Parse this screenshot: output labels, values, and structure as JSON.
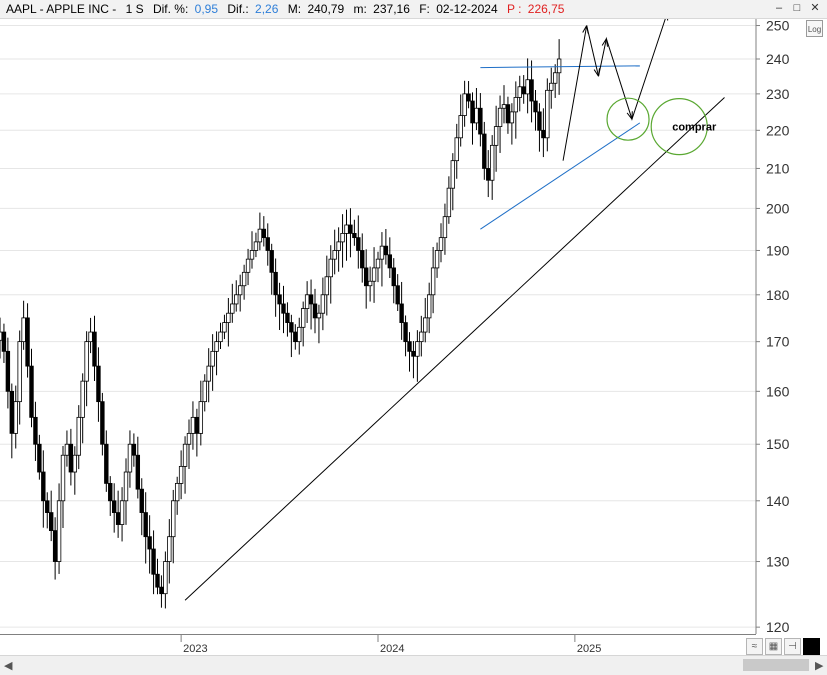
{
  "header": {
    "symbol": "AAPL - APPLE INC -",
    "interval": "1 S",
    "dif_pct_label": "Dif. %:",
    "dif_pct_value": "0,95",
    "dif_label": "Dif.:",
    "dif_value": "2,26",
    "max_label": "M:",
    "max_value": "240,79",
    "min_label": "m:",
    "min_value": "237,16",
    "date_label": "F:",
    "date_value": "02-12-2024",
    "price_label": "P :",
    "price_value": "226,75"
  },
  "buttons": {
    "log": "Log"
  },
  "colors": {
    "candle": "#000000",
    "trendline_blue": "#1f6fc7",
    "circle_green": "#5aa832",
    "price_red": "#e02020",
    "grid": "#e6e6e6"
  },
  "chart_data": {
    "type": "candlestick",
    "y_axis_ticks": [
      120,
      130,
      140,
      150,
      160,
      170,
      180,
      190,
      200,
      210,
      220,
      230,
      240,
      250
    ],
    "ylim": [
      119,
      252
    ],
    "log_scale": true,
    "x_axis_ticks": [
      {
        "label": "2023",
        "t": 2023.0
      },
      {
        "label": "2024",
        "t": 2024.0
      },
      {
        "label": "2025",
        "t": 2025.0
      }
    ],
    "xlim": [
      2022.08,
      2025.92
    ],
    "weekly_closes": [
      172,
      168,
      160,
      152,
      158,
      170,
      175,
      165,
      155,
      150,
      145,
      140,
      138,
      135,
      130,
      140,
      148,
      150,
      145,
      148,
      155,
      162,
      170,
      172,
      165,
      158,
      150,
      143,
      140,
      138,
      136,
      140,
      145,
      150,
      148,
      142,
      138,
      134,
      132,
      128,
      126,
      125,
      130,
      134,
      140,
      143,
      146,
      150,
      152,
      155,
      152,
      158,
      162,
      165,
      168,
      170,
      172,
      174,
      176,
      178,
      180,
      182,
      185,
      188,
      190,
      192,
      195,
      193,
      190,
      185,
      180,
      178,
      176,
      174,
      172,
      170,
      173,
      177,
      180,
      178,
      175,
      176,
      180,
      184,
      188,
      190,
      192,
      194,
      196,
      194,
      193,
      190,
      186,
      182,
      183,
      186,
      188,
      191,
      189,
      186,
      182,
      178,
      174,
      170,
      168,
      167,
      170,
      172,
      175,
      180,
      186,
      190,
      193,
      198,
      205,
      212,
      218,
      224,
      230,
      228,
      222,
      226,
      219,
      210,
      207,
      216,
      221,
      226,
      227,
      222,
      225,
      229,
      232,
      230,
      234,
      228,
      225,
      220,
      218,
      231,
      233,
      236,
      240
    ],
    "annotations": [
      {
        "type": "trendline",
        "color": "black",
        "from": {
          "t": 2023.02,
          "y": 124
        },
        "to": {
          "t": 2025.76,
          "y": 229
        }
      },
      {
        "type": "trendline",
        "color": "blue",
        "from": {
          "t": 2024.52,
          "y": 195
        },
        "to": {
          "t": 2025.33,
          "y": 222
        }
      },
      {
        "type": "resistance",
        "color": "blue",
        "from": {
          "t": 2024.52,
          "y": 237.5
        },
        "to": {
          "t": 2025.33,
          "y": 238
        }
      },
      {
        "type": "projection",
        "color": "black",
        "points": [
          {
            "t": 2024.94,
            "y": 212
          },
          {
            "t": 2025.06,
            "y": 250
          },
          {
            "t": 2025.12,
            "y": 235
          },
          {
            "t": 2025.16,
            "y": 246
          },
          {
            "t": 2025.29,
            "y": 223
          },
          {
            "t": 2025.47,
            "y": 254
          }
        ]
      },
      {
        "type": "circle",
        "color": "green",
        "center": {
          "t": 2025.27,
          "y": 223
        },
        "label": ""
      },
      {
        "type": "circle",
        "color": "green",
        "center": {
          "t": 2025.53,
          "y": 221
        },
        "label": "comprar"
      }
    ]
  }
}
